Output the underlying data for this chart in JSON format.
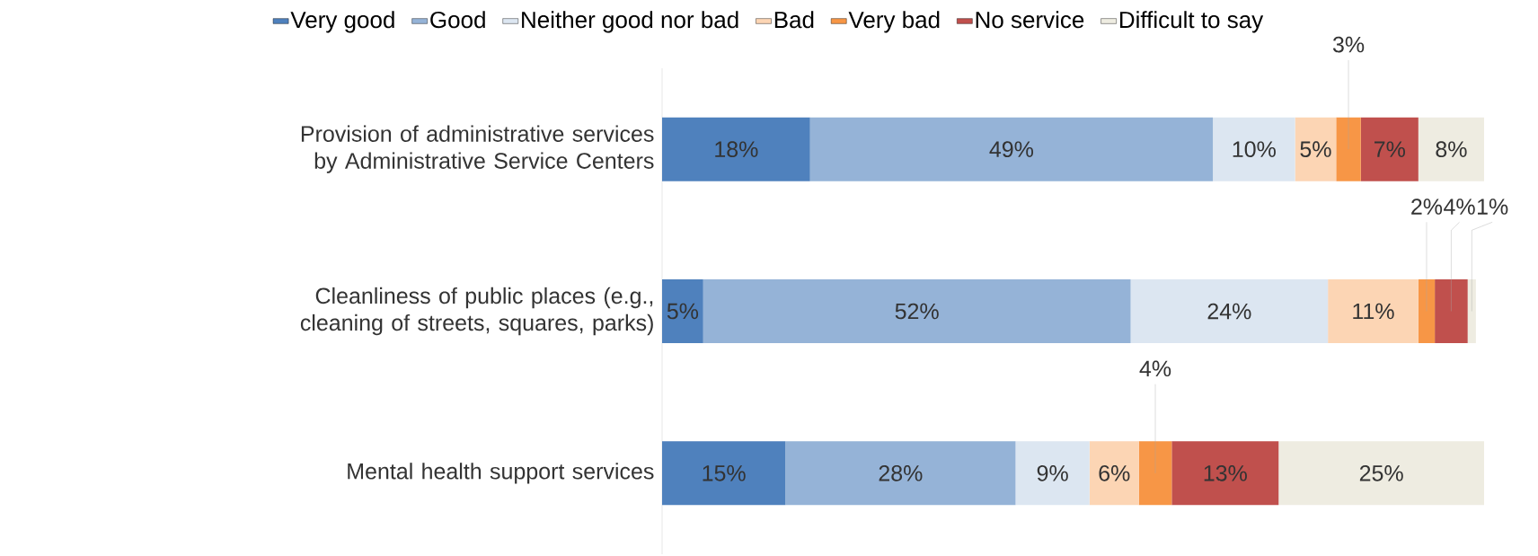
{
  "chart_data": {
    "type": "bar",
    "orientation": "horizontal",
    "stacked": true,
    "legend": "top",
    "tick_labels": "y",
    "xlim": [
      0,
      100
    ],
    "categories": [
      "Provision of administrative services by Administrative Service Centers",
      "Cleanliness of public places (e.g., cleaning of streets, squares, parks)",
      "Mental health support services"
    ],
    "series": [
      {
        "name": "Very good",
        "color": "#4f81bd",
        "values": [
          18,
          5,
          15
        ],
        "value_labels": [
          "18%",
          "5%",
          "15%"
        ]
      },
      {
        "name": "Good",
        "color": "#95b3d7",
        "values": [
          49,
          52,
          28
        ],
        "value_labels": [
          "49%",
          "52%",
          "28%"
        ]
      },
      {
        "name": "Neither good nor bad",
        "color": "#dce6f1",
        "values": [
          10,
          24,
          9
        ],
        "value_labels": [
          "10%",
          "24%",
          "9%"
        ]
      },
      {
        "name": "Bad",
        "color": "#fcd5b4",
        "values": [
          5,
          11,
          6
        ],
        "value_labels": [
          "5%",
          "11%",
          "6%"
        ]
      },
      {
        "name": "Very bad",
        "color": "#f79646",
        "values": [
          3,
          2,
          4
        ],
        "value_labels": [
          "3%",
          "2%",
          "4%"
        ]
      },
      {
        "name": "No service",
        "color": "#c0504d",
        "values": [
          7,
          4,
          13
        ],
        "value_labels": [
          "7%",
          "4%",
          "13%"
        ]
      },
      {
        "name": "Difficult to say",
        "color": "#eeece1",
        "values": [
          8,
          1,
          25
        ],
        "value_labels": [
          "8%",
          "1%",
          "25%"
        ]
      }
    ]
  }
}
